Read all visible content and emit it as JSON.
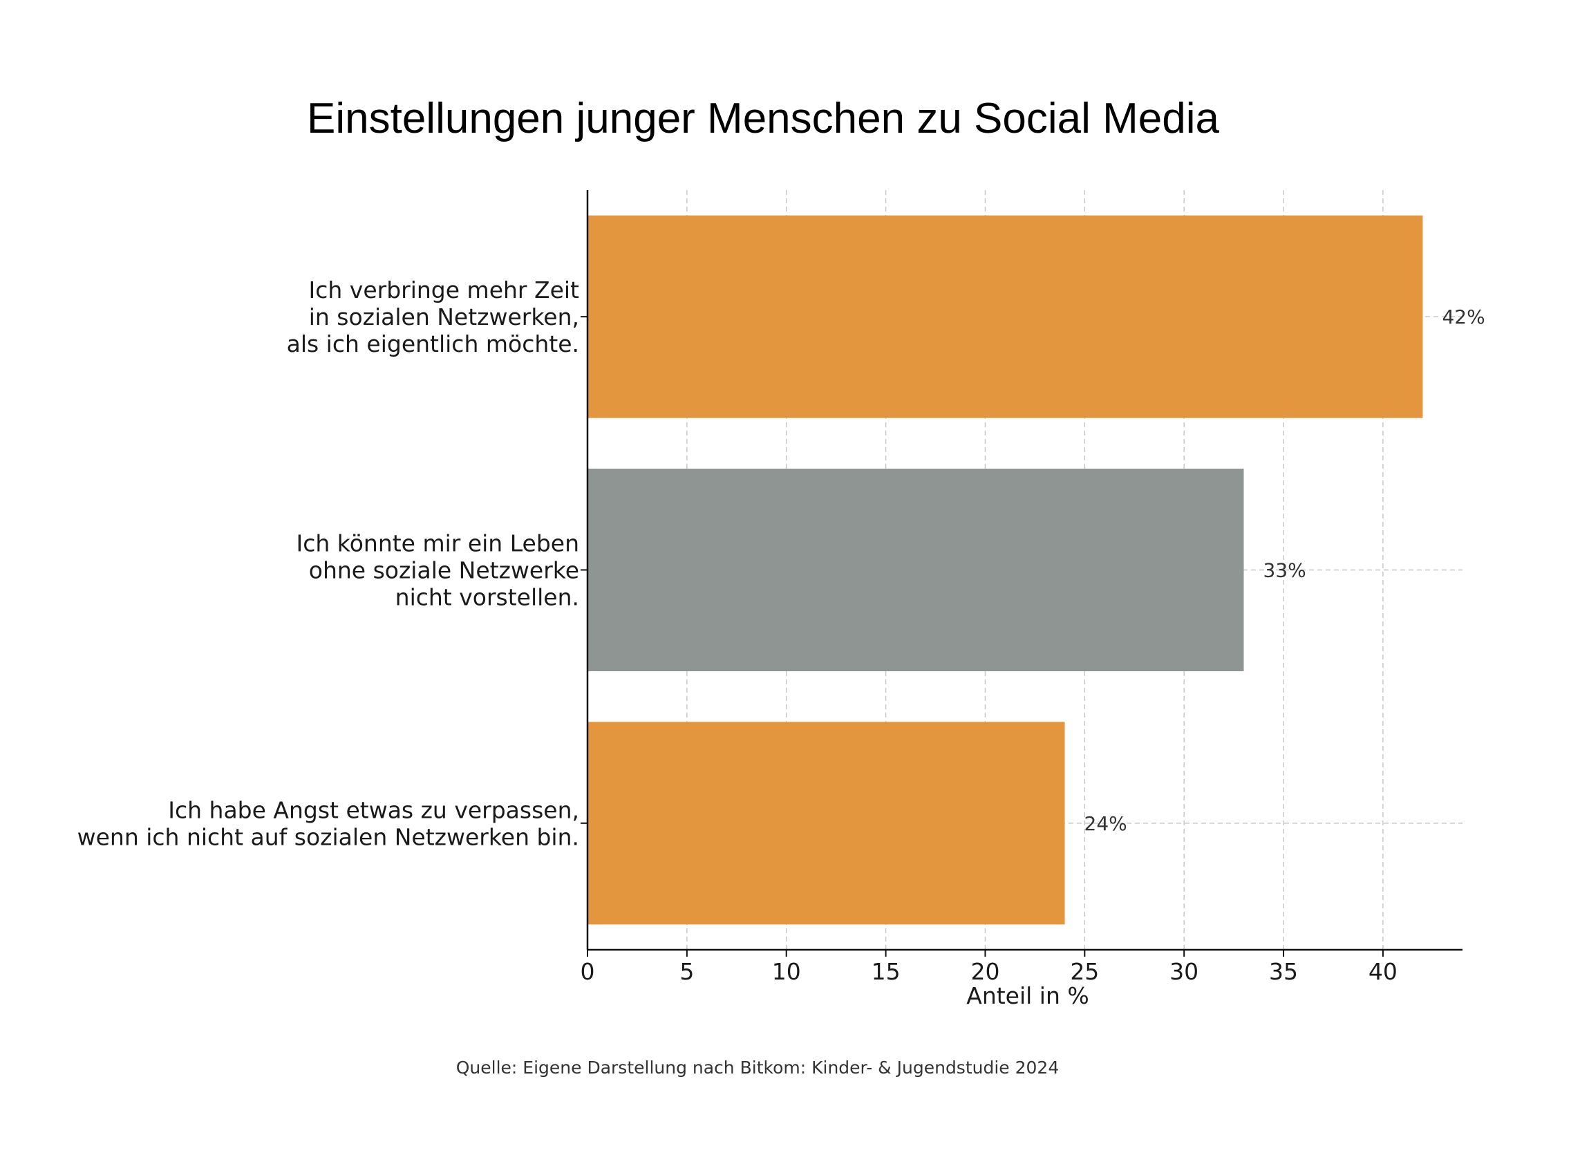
{
  "chart_data": {
    "type": "bar",
    "orientation": "horizontal",
    "title": "Einstellungen junger Menschen zu Social Media",
    "xlabel": "Anteil in %",
    "ylabel": "",
    "xlim": [
      0,
      44
    ],
    "xticks": [
      0,
      5,
      10,
      15,
      20,
      25,
      30,
      35,
      40
    ],
    "grid": true,
    "categories": [
      [
        "Ich verbringe mehr Zeit",
        "in sozialen Netzwerken,",
        "als ich eigentlich möchte."
      ],
      [
        "Ich könnte mir ein Leben",
        "ohne soziale Netzwerke",
        "nicht vorstellen."
      ],
      [
        "Ich habe Angst etwas zu verpassen,",
        "wenn ich nicht auf sozialen Netzwerken bin."
      ]
    ],
    "values": [
      42,
      33,
      24
    ],
    "value_labels": [
      "42%",
      "33%",
      "24%"
    ],
    "colors": [
      "#E3963E",
      "#8E9593",
      "#E3963E"
    ],
    "source": "Quelle: Eigene Darstellung nach Bitkom: Kinder- & Jugendstudie 2024"
  }
}
